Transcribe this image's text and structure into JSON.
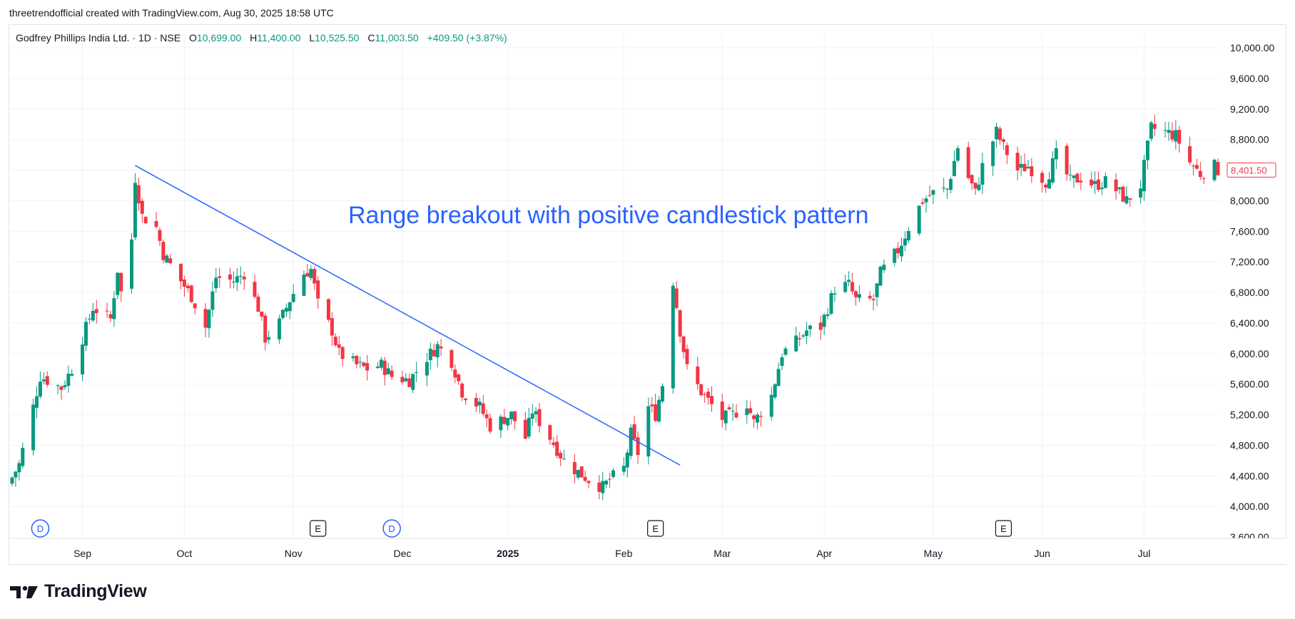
{
  "header": {
    "credit": "threetrendofficial created with TradingView.com, Aug 30, 2025 18:58 UTC"
  },
  "legend": {
    "symbol": "Godfrey Phillips India Ltd. · 1D · NSE",
    "open_label": "O",
    "open": "10,699.00",
    "high_label": "H",
    "high": "11,400.00",
    "low_label": "L",
    "low": "10,525.50",
    "close_label": "C",
    "close": "11,003.50",
    "change": "+409.50 (+3.87%)"
  },
  "brand": {
    "name": "TradingView"
  },
  "colors": {
    "up": "#089981",
    "down": "#f23645",
    "trendline": "#2962ff",
    "annotation": "#2962ff",
    "grid": "#f0f3fa",
    "axis_text": "#131722"
  },
  "chart_data": {
    "type": "candlestick",
    "y_ticks": [
      "10,000.00",
      "9,600.00",
      "9,200.00",
      "8,800.00",
      "8,400.00",
      "8,000.00",
      "7,600.00",
      "7,200.00",
      "6,800.00",
      "6,400.00",
      "6,000.00",
      "5,600.00",
      "5,200.00",
      "4,800.00",
      "4,400.00",
      "4,000.00",
      "3,600.00"
    ],
    "ylim": [
      3600,
      10000
    ],
    "x_ticks": [
      {
        "label": "Sep",
        "date": "2024-09-02",
        "bold": false
      },
      {
        "label": "Oct",
        "date": "2024-10-01",
        "bold": false
      },
      {
        "label": "Nov",
        "date": "2024-11-01",
        "bold": false
      },
      {
        "label": "Dec",
        "date": "2024-12-02",
        "bold": false
      },
      {
        "label": "2025",
        "date": "2025-01-01",
        "bold": true
      },
      {
        "label": "Feb",
        "date": "2025-02-03",
        "bold": false
      },
      {
        "label": "Mar",
        "date": "2025-03-03",
        "bold": false
      },
      {
        "label": "Apr",
        "date": "2025-04-01",
        "bold": false
      },
      {
        "label": "May",
        "date": "2025-05-02",
        "bold": false
      },
      {
        "label": "Jun",
        "date": "2025-06-02",
        "bold": false
      },
      {
        "label": "Jul",
        "date": "2025-07-01",
        "bold": false
      }
    ],
    "price_label": {
      "text": "8,401.50",
      "value": 8401.5
    },
    "annotation": "Range breakout with positive candlestick pattern",
    "trendline": {
      "start": {
        "date": "2024-09-17",
        "price": 8460
      },
      "end": {
        "date": "2025-02-19",
        "price": 4540
      }
    },
    "event_markers": [
      {
        "type": "D",
        "date": "2024-08-21"
      },
      {
        "type": "E",
        "date": "2024-11-08"
      },
      {
        "type": "D",
        "date": "2024-11-29"
      },
      {
        "type": "E",
        "date": "2025-02-12"
      },
      {
        "type": "E",
        "date": "2025-05-22"
      }
    ],
    "anchors": [
      {
        "date": "2024-08-13",
        "price": 4380
      },
      {
        "date": "2024-08-15",
        "price": 4550
      },
      {
        "date": "2024-08-19",
        "price": 5300
      },
      {
        "date": "2024-08-21",
        "price": 5700
      },
      {
        "date": "2024-08-27",
        "price": 5550
      },
      {
        "date": "2024-08-30",
        "price": 5800
      },
      {
        "date": "2024-09-05",
        "price": 6600
      },
      {
        "date": "2024-09-10",
        "price": 6450
      },
      {
        "date": "2024-09-12",
        "price": 7100
      },
      {
        "date": "2024-09-13",
        "price": 6800
      },
      {
        "date": "2024-09-16",
        "price": 7500
      },
      {
        "date": "2024-09-17",
        "price": 8300
      },
      {
        "date": "2024-09-19",
        "price": 7800
      },
      {
        "date": "2024-09-23",
        "price": 7650
      },
      {
        "date": "2024-09-25",
        "price": 7300
      },
      {
        "date": "2024-09-30",
        "price": 6950
      },
      {
        "date": "2024-10-03",
        "price": 6750
      },
      {
        "date": "2024-10-07",
        "price": 6350
      },
      {
        "date": "2024-10-10",
        "price": 7000
      },
      {
        "date": "2024-10-15",
        "price": 6950
      },
      {
        "date": "2024-10-18",
        "price": 7050
      },
      {
        "date": "2024-10-22",
        "price": 6600
      },
      {
        "date": "2024-10-24",
        "price": 6200
      },
      {
        "date": "2024-10-28",
        "price": 6400
      },
      {
        "date": "2024-10-31",
        "price": 6700
      },
      {
        "date": "2024-11-04",
        "price": 7050
      },
      {
        "date": "2024-11-06",
        "price": 7100
      },
      {
        "date": "2024-11-08",
        "price": 6650
      },
      {
        "date": "2024-11-12",
        "price": 6300
      },
      {
        "date": "2024-11-14",
        "price": 6000
      },
      {
        "date": "2024-11-19",
        "price": 5850
      },
      {
        "date": "2024-11-22",
        "price": 5800
      },
      {
        "date": "2024-11-26",
        "price": 5850
      },
      {
        "date": "2024-11-29",
        "price": 5700
      },
      {
        "date": "2024-12-04",
        "price": 5650
      },
      {
        "date": "2024-12-09",
        "price": 5950
      },
      {
        "date": "2024-12-12",
        "price": 6100
      },
      {
        "date": "2024-12-16",
        "price": 5900
      },
      {
        "date": "2024-12-19",
        "price": 5500
      },
      {
        "date": "2024-12-24",
        "price": 5300
      },
      {
        "date": "2024-12-27",
        "price": 5050
      },
      {
        "date": "2025-01-02",
        "price": 5200
      },
      {
        "date": "2025-01-06",
        "price": 4900
      },
      {
        "date": "2025-01-08",
        "price": 5250
      },
      {
        "date": "2025-01-13",
        "price": 4900
      },
      {
        "date": "2025-01-17",
        "price": 4600
      },
      {
        "date": "2025-01-21",
        "price": 4450
      },
      {
        "date": "2025-01-24",
        "price": 4350
      },
      {
        "date": "2025-01-28",
        "price": 4250
      },
      {
        "date": "2025-01-30",
        "price": 4350
      },
      {
        "date": "2025-02-03",
        "price": 4500
      },
      {
        "date": "2025-02-05",
        "price": 4950
      },
      {
        "date": "2025-02-07",
        "price": 4700
      },
      {
        "date": "2025-02-10",
        "price": 5300
      },
      {
        "date": "2025-02-12",
        "price": 5200
      },
      {
        "date": "2025-02-14",
        "price": 5600
      },
      {
        "date": "2025-02-17",
        "price": 6950
      },
      {
        "date": "2025-02-19",
        "price": 6300
      },
      {
        "date": "2025-02-21",
        "price": 5800
      },
      {
        "date": "2025-02-25",
        "price": 5500
      },
      {
        "date": "2025-03-03",
        "price": 5150
      },
      {
        "date": "2025-03-06",
        "price": 5200
      },
      {
        "date": "2025-03-10",
        "price": 5350
      },
      {
        "date": "2025-03-12",
        "price": 5100
      },
      {
        "date": "2025-03-17",
        "price": 5450
      },
      {
        "date": "2025-03-20",
        "price": 6000
      },
      {
        "date": "2025-03-24",
        "price": 6150
      },
      {
        "date": "2025-03-27",
        "price": 6300
      },
      {
        "date": "2025-03-31",
        "price": 6350
      },
      {
        "date": "2025-04-04",
        "price": 6850
      },
      {
        "date": "2025-04-08",
        "price": 6900
      },
      {
        "date": "2025-04-10",
        "price": 6700
      },
      {
        "date": "2025-04-15",
        "price": 6700
      },
      {
        "date": "2025-04-17",
        "price": 7050
      },
      {
        "date": "2025-04-22",
        "price": 7350
      },
      {
        "date": "2025-04-25",
        "price": 7650
      },
      {
        "date": "2025-04-29",
        "price": 8000
      },
      {
        "date": "2025-05-02",
        "price": 8100
      },
      {
        "date": "2025-05-06",
        "price": 8150
      },
      {
        "date": "2025-05-09",
        "price": 8700
      },
      {
        "date": "2025-05-12",
        "price": 8300
      },
      {
        "date": "2025-05-14",
        "price": 8100
      },
      {
        "date": "2025-05-16",
        "price": 8450
      },
      {
        "date": "2025-05-20",
        "price": 8900
      },
      {
        "date": "2025-05-22",
        "price": 8700
      },
      {
        "date": "2025-05-26",
        "price": 8400
      },
      {
        "date": "2025-05-29",
        "price": 8450
      },
      {
        "date": "2025-06-03",
        "price": 8250
      },
      {
        "date": "2025-06-06",
        "price": 8600
      },
      {
        "date": "2025-06-10",
        "price": 8250
      },
      {
        "date": "2025-06-13",
        "price": 8300
      },
      {
        "date": "2025-06-17",
        "price": 8200
      },
      {
        "date": "2025-06-20",
        "price": 8250
      },
      {
        "date": "2025-06-24",
        "price": 8100
      },
      {
        "date": "2025-06-26",
        "price": 8000
      },
      {
        "date": "2025-06-30",
        "price": 8200
      },
      {
        "date": "2025-07-03",
        "price": 8950
      },
      {
        "date": "2025-07-07",
        "price": 8900
      },
      {
        "date": "2025-07-10",
        "price": 8850
      },
      {
        "date": "2025-07-14",
        "price": 8500
      },
      {
        "date": "2025-07-17",
        "price": 8350
      },
      {
        "date": "2025-07-21",
        "price": 8450
      },
      {
        "date": "2025-07-22",
        "price": 8401.5
      }
    ]
  }
}
